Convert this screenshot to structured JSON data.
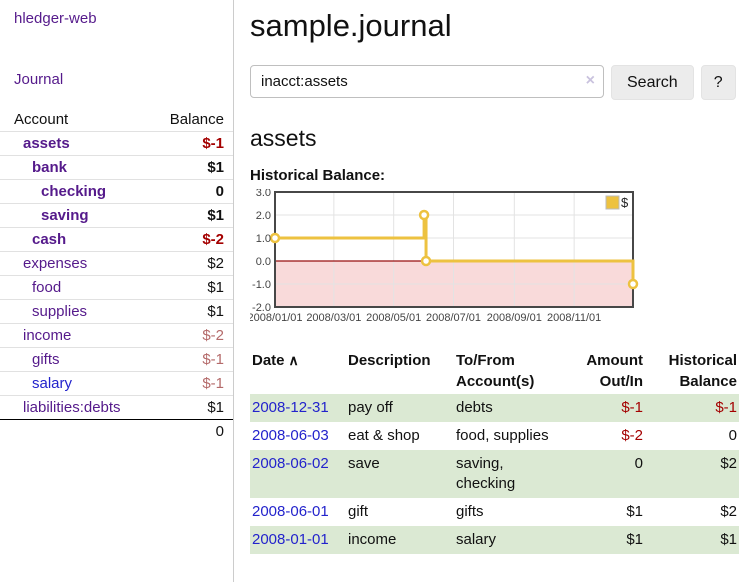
{
  "sidebar": {
    "brand": "hledger-web",
    "nav": {
      "journal": "Journal"
    },
    "accounts_table": {
      "headers": {
        "account": "Account",
        "balance": "Balance"
      },
      "rows": [
        {
          "name": "assets",
          "balance": "$-1"
        },
        {
          "name": "bank",
          "balance": "$1"
        },
        {
          "name": "checking",
          "balance": "0"
        },
        {
          "name": "saving",
          "balance": "$1"
        },
        {
          "name": "cash",
          "balance": "$-2"
        },
        {
          "name": "expenses",
          "balance": "$2"
        },
        {
          "name": "food",
          "balance": "$1"
        },
        {
          "name": "supplies",
          "balance": "$1"
        },
        {
          "name": "income",
          "balance": "$-2"
        },
        {
          "name": "gifts",
          "balance": "$-1"
        },
        {
          "name": "salary",
          "balance": "$-1"
        },
        {
          "name": "liabilities:debts",
          "balance": "$1"
        }
      ],
      "total": "0"
    }
  },
  "header": {
    "title": "sample.journal"
  },
  "search": {
    "value": "inacct:assets",
    "clear_icon": "×",
    "button": "Search",
    "help_button": "?"
  },
  "account_page": {
    "heading": "assets",
    "chart_title": "Historical Balance:"
  },
  "chart_data": {
    "type": "line",
    "step": true,
    "title": "Historical Balance:",
    "series": [
      {
        "name": "$",
        "color": "#edc240",
        "points": [
          [
            "2008-01-01",
            1.0
          ],
          [
            "2008-06-01",
            2.0
          ],
          [
            "2008-06-03",
            0.0
          ],
          [
            "2008-12-31",
            -1.0
          ]
        ]
      }
    ],
    "xlim": [
      "2008-01-01",
      "2008-12-31"
    ],
    "ylim": [
      -2.0,
      3.0
    ],
    "yticks": [
      3.0,
      2.0,
      1.0,
      0.0,
      -1.0,
      -2.0
    ],
    "xticks": [
      "2008/01/01",
      "2008/03/01",
      "2008/05/01",
      "2008/07/01",
      "2008/09/01",
      "2008/11/01"
    ],
    "legend_position": "top-right",
    "grid": true,
    "negative_region_color": "#f9dada",
    "zero_line_color": "#991111",
    "border_color": "#474747",
    "grid_color": "#e3e3e3"
  },
  "register": {
    "headers": {
      "date": "Date",
      "sort_icon": "∧",
      "description": "Description",
      "tofrom_line1": "To/From",
      "tofrom_line2": "Account(s)",
      "amount_line1": "Amount",
      "amount_line2": "Out/In",
      "balance_line1": "Historical",
      "balance_line2": "Balance"
    },
    "rows": [
      {
        "date": "2008-12-31",
        "description": "pay off",
        "accounts": "debts",
        "amount": "$-1",
        "balance": "$-1"
      },
      {
        "date": "2008-06-03",
        "description": "eat & shop",
        "accounts": "food, supplies",
        "amount": "$-2",
        "balance": "0"
      },
      {
        "date": "2008-06-02",
        "description": "save",
        "accounts": "saving, checking",
        "amount": "0",
        "balance": "$2"
      },
      {
        "date": "2008-06-01",
        "description": "gift",
        "accounts": "gifts",
        "amount": "$1",
        "balance": "$2"
      },
      {
        "date": "2008-01-01",
        "description": "income",
        "accounts": "salary",
        "amount": "$1",
        "balance": "$1"
      }
    ]
  }
}
